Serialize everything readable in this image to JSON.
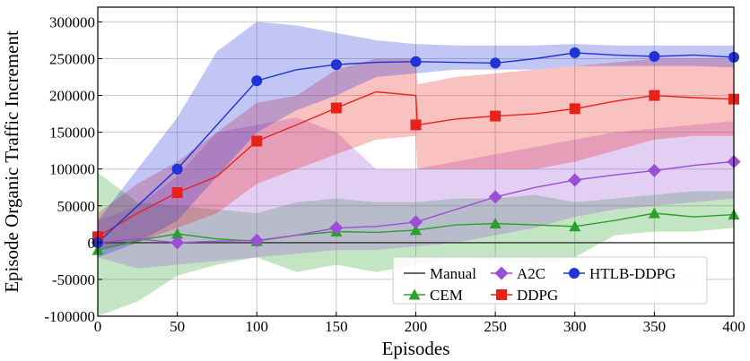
{
  "chart_data": {
    "type": "line",
    "title": "",
    "xlabel": "Episodes",
    "ylabel": "Episode Organic Traffic Increment",
    "xlim": [
      0,
      400
    ],
    "ylim": [
      -100000,
      320000
    ],
    "grid": true,
    "x_ticks": [
      0,
      50,
      100,
      150,
      200,
      250,
      300,
      350,
      400
    ],
    "y_ticks": [
      -100000,
      -50000,
      0,
      50000,
      100000,
      150000,
      200000,
      250000,
      300000
    ],
    "x_tick_labels": [
      "0",
      "50",
      "100",
      "150",
      "200",
      "250",
      "300",
      "350",
      "400"
    ],
    "y_tick_labels": [
      "-100000",
      "-50000",
      "0",
      "50000",
      "100000",
      "150000",
      "200000",
      "250000",
      "300000"
    ],
    "legend_position": "bottom-right",
    "series": [
      {
        "name": "Manual",
        "color": "#333333",
        "marker": "none",
        "x": [
          0,
          400
        ],
        "mean": [
          0,
          0
        ],
        "lower": [
          0,
          0
        ],
        "upper": [
          0,
          0
        ]
      },
      {
        "name": "CEM",
        "color": "#2ca02c",
        "marker": "triangle",
        "x": [
          0,
          25,
          50,
          75,
          100,
          125,
          150,
          175,
          200,
          225,
          250,
          275,
          300,
          325,
          350,
          375,
          400
        ],
        "mean": [
          -10000,
          3000,
          12000,
          5000,
          2000,
          10000,
          15000,
          14000,
          17000,
          24000,
          26000,
          24000,
          22000,
          30000,
          40000,
          35000,
          38000
        ],
        "lower": [
          -100000,
          -80000,
          -45000,
          -30000,
          -20000,
          -40000,
          -30000,
          -40000,
          -30000,
          -20000,
          -25000,
          -30000,
          -20000,
          10000,
          15000,
          15000,
          20000
        ],
        "upper": [
          95000,
          55000,
          50000,
          45000,
          40000,
          55000,
          60000,
          55000,
          55000,
          60000,
          60000,
          65000,
          55000,
          60000,
          65000,
          70000,
          70000
        ],
        "markers_x": [
          0,
          50,
          100,
          150,
          200,
          250,
          300,
          350,
          400
        ],
        "markers_y": [
          -10000,
          12000,
          2000,
          15000,
          17000,
          26000,
          22000,
          40000,
          38000
        ]
      },
      {
        "name": "A2C",
        "color": "#9c4fd6",
        "marker": "diamond",
        "x": [
          0,
          25,
          50,
          75,
          100,
          125,
          150,
          175,
          200,
          225,
          250,
          275,
          300,
          325,
          350,
          375,
          400
        ],
        "mean": [
          0,
          5000,
          0,
          2000,
          3000,
          10000,
          20000,
          22000,
          28000,
          45000,
          62000,
          75000,
          85000,
          92000,
          98000,
          105000,
          110000
        ],
        "lower": [
          -20000,
          -35000,
          -30000,
          -25000,
          -20000,
          -15000,
          -10000,
          -10000,
          -5000,
          0,
          10000,
          20000,
          35000,
          45000,
          50000,
          55000,
          60000
        ],
        "upper": [
          30000,
          50000,
          90000,
          150000,
          160000,
          170000,
          150000,
          100000,
          100000,
          110000,
          120000,
          130000,
          140000,
          150000,
          155000,
          160000,
          165000
        ],
        "markers_x": [
          0,
          50,
          100,
          150,
          200,
          250,
          300,
          350,
          400
        ],
        "markers_y": [
          0,
          0,
          3000,
          20000,
          28000,
          62000,
          85000,
          98000,
          110000
        ]
      },
      {
        "name": "DDPG",
        "color": "#e8221b",
        "marker": "square",
        "x": [
          0,
          25,
          50,
          75,
          100,
          125,
          150,
          175,
          200,
          201,
          225,
          250,
          275,
          300,
          325,
          350,
          375,
          400
        ],
        "mean": [
          8000,
          40000,
          68000,
          90000,
          138000,
          160000,
          183000,
          205000,
          200000,
          160000,
          168000,
          172000,
          175000,
          182000,
          192000,
          200000,
          197000,
          195000
        ],
        "lower": [
          -10000,
          0,
          20000,
          40000,
          80000,
          100000,
          120000,
          140000,
          145000,
          100000,
          100000,
          100000,
          100000,
          110000,
          125000,
          140000,
          145000,
          145000
        ],
        "upper": [
          40000,
          80000,
          110000,
          150000,
          190000,
          200000,
          235000,
          250000,
          250000,
          215000,
          225000,
          230000,
          235000,
          240000,
          245000,
          250000,
          250000,
          250000
        ],
        "markers_x": [
          0,
          50,
          100,
          150,
          200,
          250,
          300,
          350,
          400
        ],
        "markers_y": [
          8000,
          68000,
          138000,
          183000,
          160000,
          172000,
          182000,
          200000,
          195000
        ]
      },
      {
        "name": "HTLB-DDPG",
        "color": "#1f33d6",
        "marker": "circle",
        "x": [
          0,
          25,
          50,
          75,
          100,
          125,
          150,
          175,
          200,
          225,
          250,
          275,
          300,
          325,
          350,
          375,
          400
        ],
        "mean": [
          0,
          50000,
          100000,
          160000,
          220000,
          235000,
          242000,
          245000,
          246000,
          245000,
          244000,
          250000,
          258000,
          255000,
          253000,
          255000,
          252000
        ],
        "lower": [
          -20000,
          0,
          30000,
          90000,
          150000,
          180000,
          200000,
          225000,
          230000,
          235000,
          235000,
          235000,
          240000,
          240000,
          240000,
          240000,
          238000
        ],
        "upper": [
          30000,
          100000,
          170000,
          260000,
          300000,
          295000,
          285000,
          275000,
          270000,
          268000,
          268000,
          268000,
          270000,
          268000,
          268000,
          268000,
          268000
        ],
        "markers_x": [
          0,
          50,
          100,
          150,
          200,
          250,
          300,
          350,
          400
        ],
        "markers_y": [
          0,
          100000,
          220000,
          242000,
          246000,
          244000,
          258000,
          253000,
          252000
        ]
      }
    ]
  }
}
